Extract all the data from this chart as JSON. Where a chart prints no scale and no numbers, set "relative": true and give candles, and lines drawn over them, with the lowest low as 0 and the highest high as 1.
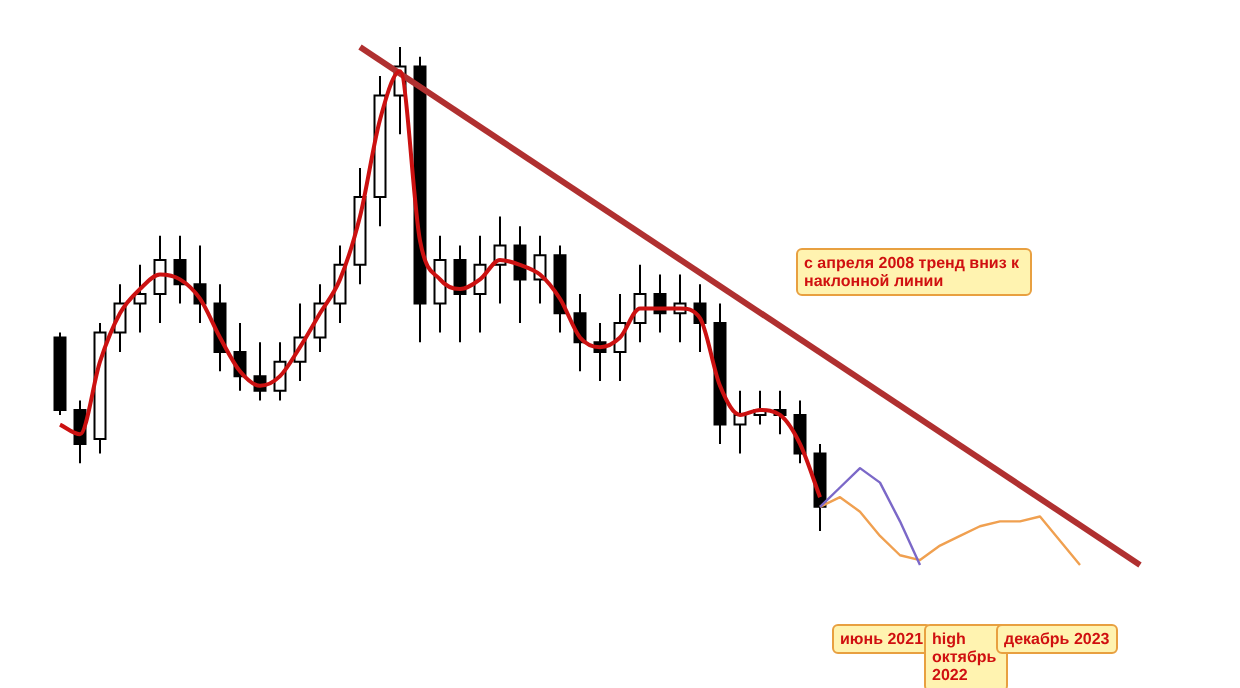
{
  "chart_data": {
    "type": "candlestick",
    "relative": true,
    "legend": false,
    "categories": [
      null,
      null,
      null,
      null,
      null,
      null,
      null,
      null,
      null,
      null,
      null,
      null,
      null,
      null,
      null,
      null,
      null,
      null,
      null,
      null,
      null,
      null,
      null,
      null,
      null,
      null,
      null,
      null,
      null,
      null,
      null,
      null,
      null,
      null,
      null,
      null,
      null,
      null,
      null,
      null,
      null,
      null,
      null,
      null,
      null,
      null,
      null,
      null,
      null,
      null,
      null,
      null,
      null,
      null,
      null,
      null,
      null,
      null,
      null,
      null
    ],
    "ohlc": [
      null,
      null,
      [
        0.4,
        0.41,
        0.24,
        0.25
      ],
      [
        0.25,
        0.27,
        0.14,
        0.18
      ],
      [
        0.19,
        0.43,
        0.16,
        0.41
      ],
      [
        0.41,
        0.51,
        0.37,
        0.47
      ],
      [
        0.47,
        0.55,
        0.41,
        0.49
      ],
      [
        0.49,
        0.61,
        0.43,
        0.56
      ],
      [
        0.56,
        0.61,
        0.47,
        0.51
      ],
      [
        0.51,
        0.59,
        0.43,
        0.47
      ],
      [
        0.47,
        0.51,
        0.33,
        0.37
      ],
      [
        0.37,
        0.43,
        0.29,
        0.32
      ],
      [
        0.32,
        0.39,
        0.27,
        0.29
      ],
      [
        0.29,
        0.39,
        0.27,
        0.35
      ],
      [
        0.35,
        0.47,
        0.31,
        0.4
      ],
      [
        0.4,
        0.51,
        0.37,
        0.47
      ],
      [
        0.47,
        0.59,
        0.43,
        0.55
      ],
      [
        0.55,
        0.75,
        0.51,
        0.69
      ],
      [
        0.69,
        0.94,
        0.63,
        0.9
      ],
      [
        0.9,
        1.0,
        0.82,
        0.96
      ],
      [
        0.96,
        0.98,
        0.39,
        0.47
      ],
      [
        0.47,
        0.61,
        0.41,
        0.56
      ],
      [
        0.56,
        0.59,
        0.39,
        0.49
      ],
      [
        0.49,
        0.61,
        0.41,
        0.55
      ],
      [
        0.55,
        0.65,
        0.47,
        0.59
      ],
      [
        0.59,
        0.63,
        0.43,
        0.52
      ],
      [
        0.52,
        0.61,
        0.47,
        0.57
      ],
      [
        0.57,
        0.59,
        0.41,
        0.45
      ],
      [
        0.45,
        0.49,
        0.33,
        0.39
      ],
      [
        0.39,
        0.43,
        0.31,
        0.37
      ],
      [
        0.37,
        0.49,
        0.31,
        0.43
      ],
      [
        0.43,
        0.55,
        0.39,
        0.49
      ],
      [
        0.49,
        0.53,
        0.41,
        0.45
      ],
      [
        0.45,
        0.53,
        0.39,
        0.47
      ],
      [
        0.47,
        0.51,
        0.37,
        0.43
      ],
      [
        0.43,
        0.47,
        0.18,
        0.22
      ],
      [
        0.22,
        0.29,
        0.16,
        0.24
      ],
      [
        0.24,
        0.29,
        0.22,
        0.25
      ],
      [
        0.25,
        0.29,
        0.2,
        0.24
      ],
      [
        0.24,
        0.27,
        0.14,
        0.16
      ],
      [
        0.16,
        0.18,
        0,
        0.05
      ],
      null,
      null,
      null,
      null,
      null,
      null,
      null,
      null,
      null,
      null,
      null,
      null,
      null,
      null,
      null,
      null,
      null,
      null,
      null
    ],
    "series": [
      {
        "type": "line",
        "color": "#cc1111",
        "values": [
          null,
          null,
          0.22,
          0.2,
          0.35,
          0.45,
          0.5,
          0.53,
          0.52,
          0.48,
          0.4,
          0.33,
          0.3,
          0.32,
          0.38,
          0.45,
          0.52,
          0.65,
          0.85,
          0.95,
          0.6,
          0.52,
          0.5,
          0.52,
          0.56,
          0.55,
          0.53,
          0.48,
          0.4,
          0.38,
          0.4,
          0.46,
          0.46,
          0.46,
          0.44,
          0.3,
          0.24,
          0.25,
          0.24,
          0.18,
          0.07,
          null,
          null,
          null,
          null,
          null,
          null,
          null,
          null,
          null,
          null,
          null,
          null,
          null,
          null,
          null,
          null,
          null,
          null,
          null
        ]
      },
      {
        "type": "line",
        "color": "#7b68c8",
        "values": [
          null,
          null,
          null,
          null,
          null,
          null,
          null,
          null,
          null,
          null,
          null,
          null,
          null,
          null,
          null,
          null,
          null,
          null,
          null,
          null,
          null,
          null,
          null,
          null,
          null,
          null,
          null,
          null,
          null,
          null,
          null,
          null,
          null,
          null,
          null,
          null,
          null,
          null,
          null,
          null,
          0.05,
          0.09,
          0.13,
          0.1,
          0.02,
          -0.07,
          null,
          null,
          null,
          null,
          null,
          null,
          null,
          null,
          null,
          null,
          null,
          null,
          null,
          null
        ]
      },
      {
        "type": "line",
        "color": "#f0a050",
        "values": [
          null,
          null,
          null,
          null,
          null,
          null,
          null,
          null,
          null,
          null,
          null,
          null,
          null,
          null,
          null,
          null,
          null,
          null,
          null,
          null,
          null,
          null,
          null,
          null,
          null,
          null,
          null,
          null,
          null,
          null,
          null,
          null,
          null,
          null,
          null,
          null,
          null,
          null,
          null,
          null,
          0.05,
          0.07,
          0.04,
          -0.01,
          -0.05,
          -0.06,
          -0.03,
          -0.01,
          0.01,
          0.02,
          0.02,
          0.03,
          -0.02,
          -0.07,
          null,
          null,
          null,
          null,
          null,
          null
        ]
      },
      {
        "type": "line",
        "color": "#b03030",
        "values": [
          null,
          null,
          null,
          null,
          null,
          null,
          null,
          null,
          null,
          null,
          null,
          null,
          null,
          null,
          null,
          null,
          null,
          1.0,
          null,
          null,
          null,
          null,
          null,
          null,
          null,
          null,
          null,
          null,
          null,
          null,
          null,
          null,
          null,
          null,
          null,
          null,
          null,
          null,
          null,
          null,
          null,
          null,
          null,
          null,
          null,
          null,
          null,
          null,
          null,
          null,
          null,
          null,
          null,
          null,
          null,
          null,
          -0.07,
          null,
          null,
          null
        ]
      }
    ],
    "annotations": [
      "с апреля 2008 тренд вниз к наклонной линии",
      "июнь 2021",
      "high октябрь 2022",
      "декабрь 2023"
    ]
  }
}
